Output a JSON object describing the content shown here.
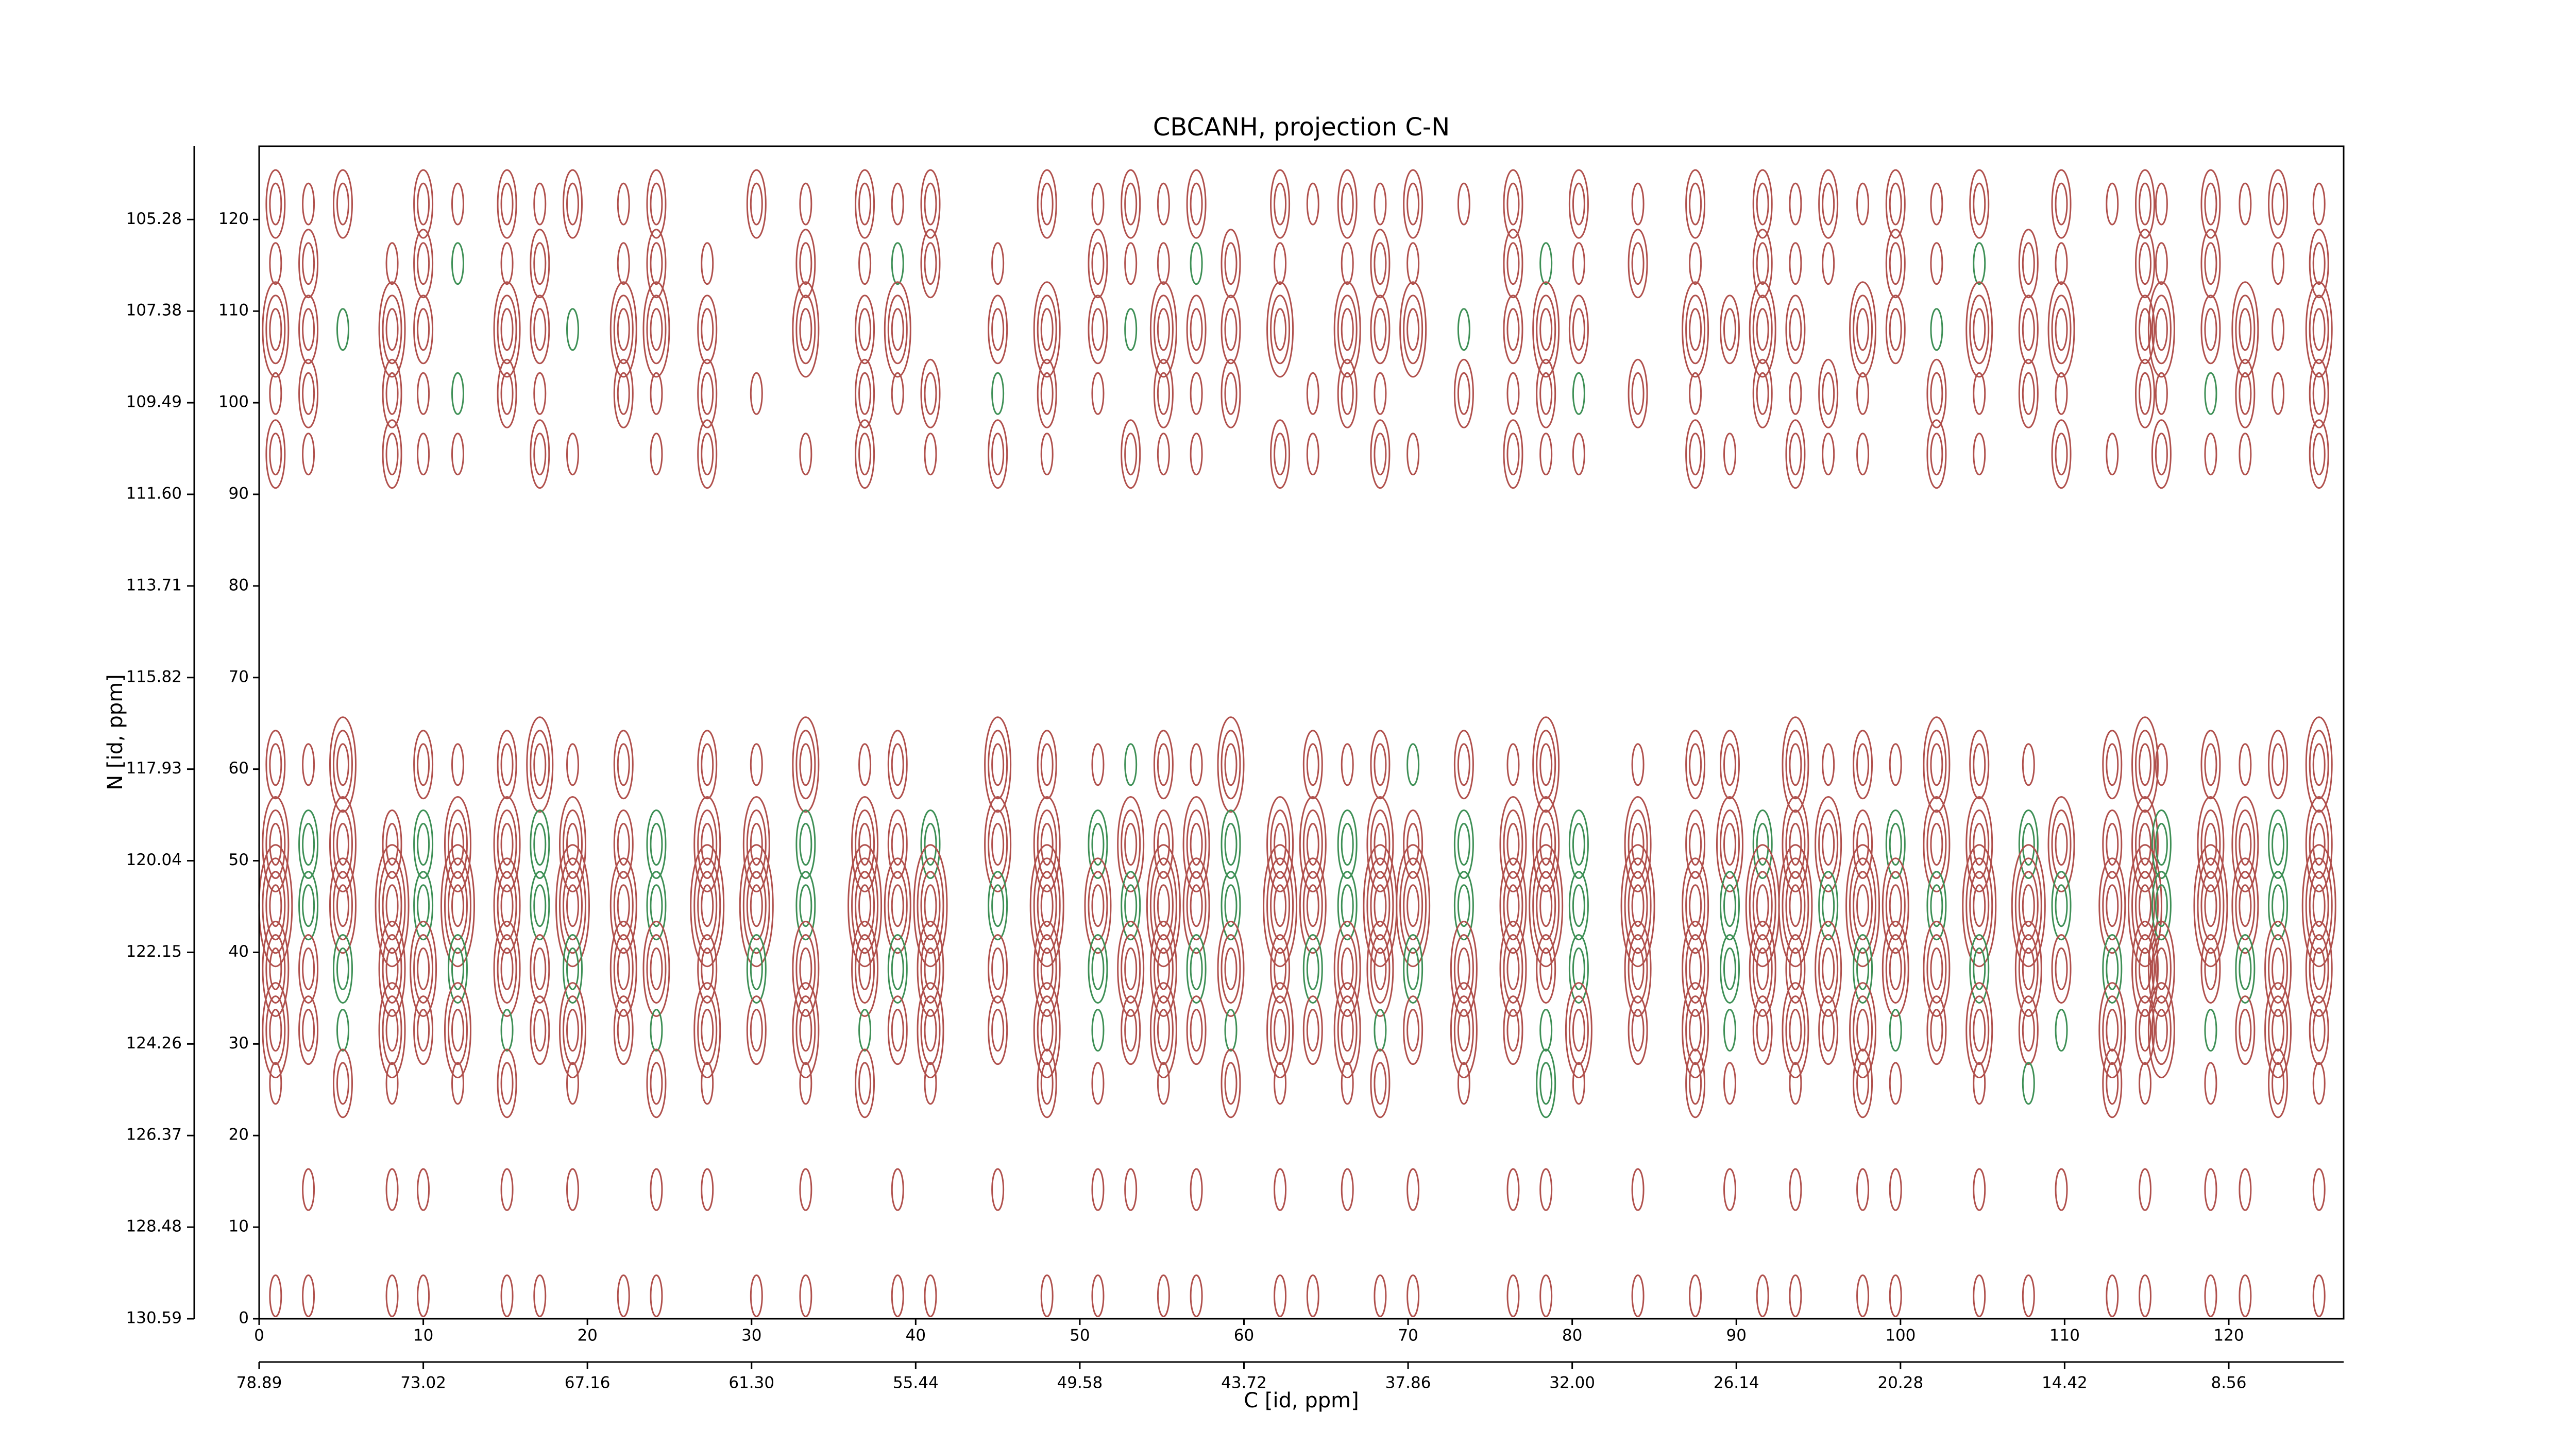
{
  "chart_data": {
    "type": "contour",
    "title": "CBCANH, projection C-N",
    "xlabel": "C [id, ppm]",
    "ylabel": "N [id, ppm]",
    "xlim": [
      0,
      127
    ],
    "ylim": [
      0,
      128
    ],
    "xticks": [
      0,
      10,
      20,
      30,
      40,
      50,
      60,
      70,
      80,
      90,
      100,
      110,
      120
    ],
    "yticks": [
      0,
      10,
      20,
      30,
      40,
      50,
      60,
      70,
      80,
      90,
      100,
      110,
      120
    ],
    "x2ticks": [
      {
        "value": 0,
        "label": "78.89"
      },
      {
        "value": 10,
        "label": "73.02"
      },
      {
        "value": 20,
        "label": "67.16"
      },
      {
        "value": 30,
        "label": "61.30"
      },
      {
        "value": 40,
        "label": "55.44"
      },
      {
        "value": 50,
        "label": "49.58"
      },
      {
        "value": 60,
        "label": "43.72"
      },
      {
        "value": 70,
        "label": "37.86"
      },
      {
        "value": 80,
        "label": "32.00"
      },
      {
        "value": 90,
        "label": "26.14"
      },
      {
        "value": 100,
        "label": "20.28"
      },
      {
        "value": 110,
        "label": "14.42"
      },
      {
        "value": 120,
        "label": "8.56"
      }
    ],
    "y2ticks": [
      {
        "value": 0,
        "label": "130.59"
      },
      {
        "value": 10,
        "label": "128.48"
      },
      {
        "value": 20,
        "label": "126.37"
      },
      {
        "value": 30,
        "label": "124.26"
      },
      {
        "value": 40,
        "label": "122.15"
      },
      {
        "value": 50,
        "label": "120.04"
      },
      {
        "value": 60,
        "label": "117.93"
      },
      {
        "value": 70,
        "label": "115.82"
      },
      {
        "value": 80,
        "label": "113.71"
      },
      {
        "value": 90,
        "label": "111.60"
      },
      {
        "value": 100,
        "label": "109.49"
      },
      {
        "value": 110,
        "label": "107.38"
      },
      {
        "value": 120,
        "label": "105.28"
      }
    ],
    "colors": {
      "positive": "#b0504c",
      "negative": "#3d8f55"
    },
    "columns": [
      1.0,
      3.0,
      5.1,
      8.1,
      10.0,
      12.1,
      15.1,
      17.1,
      19.1,
      22.2,
      24.2,
      27.3,
      30.3,
      33.3,
      36.9,
      38.9,
      40.9,
      45.0,
      48.0,
      51.1,
      53.1,
      55.1,
      57.1,
      59.2,
      62.2,
      64.2,
      66.3,
      68.3,
      70.3,
      73.4,
      76.4,
      78.4,
      80.4,
      84.0,
      87.5,
      89.6,
      91.6,
      93.6,
      95.6,
      97.7,
      99.7,
      102.2,
      104.8,
      107.8,
      109.8,
      112.9,
      114.9,
      115.9,
      118.9,
      121.0,
      123.0,
      125.5
    ],
    "rows": [
      121.7,
      115.2,
      108,
      101,
      94.4,
      60.5,
      51.8,
      45.1,
      38.2,
      31.5,
      25.7,
      14.1,
      2.5
    ],
    "levels": [
      [
        2,
        1,
        2,
        0,
        2,
        1,
        2,
        1,
        2,
        1,
        2,
        0,
        2,
        1,
        2,
        1,
        2,
        0,
        2,
        1,
        2,
        1,
        2,
        0,
        2,
        1,
        2,
        1,
        2,
        1,
        2,
        0,
        2,
        1,
        2,
        0,
        2,
        1,
        2,
        1,
        2,
        1,
        2,
        0,
        2,
        1,
        2,
        1,
        2,
        1,
        2,
        1
      ],
      [
        1,
        2,
        0,
        1,
        2,
        -1,
        1,
        2,
        0,
        1,
        2,
        1,
        0,
        2,
        1,
        -1,
        2,
        1,
        0,
        2,
        1,
        1,
        -1,
        2,
        1,
        0,
        1,
        2,
        1,
        0,
        2,
        -1,
        1,
        2,
        1,
        0,
        2,
        1,
        1,
        0,
        2,
        1,
        -1,
        2,
        1,
        0,
        2,
        1,
        2,
        0,
        1,
        2
      ],
      [
        3,
        2,
        -1,
        3,
        2,
        0,
        3,
        2,
        -1,
        3,
        3,
        2,
        0,
        3,
        2,
        3,
        0,
        2,
        3,
        2,
        -1,
        3,
        2,
        2,
        3,
        0,
        3,
        2,
        3,
        -1,
        2,
        3,
        2,
        0,
        3,
        2,
        3,
        2,
        0,
        3,
        2,
        -1,
        3,
        2,
        3,
        0,
        2,
        3,
        2,
        3,
        1,
        3
      ],
      [
        1,
        2,
        0,
        2,
        1,
        -1,
        2,
        1,
        0,
        2,
        1,
        2,
        1,
        0,
        2,
        1,
        2,
        -1,
        2,
        1,
        0,
        2,
        1,
        2,
        0,
        1,
        2,
        1,
        0,
        2,
        1,
        2,
        -1,
        2,
        1,
        0,
        2,
        1,
        2,
        1,
        0,
        2,
        1,
        2,
        1,
        0,
        2,
        1,
        -1,
        2,
        1,
        2
      ],
      [
        2,
        1,
        0,
        2,
        1,
        1,
        0,
        2,
        1,
        0,
        1,
        2,
        0,
        1,
        2,
        0,
        1,
        2,
        1,
        0,
        2,
        1,
        1,
        0,
        2,
        1,
        0,
        2,
        1,
        0,
        2,
        1,
        1,
        0,
        2,
        1,
        0,
        2,
        1,
        1,
        0,
        2,
        1,
        0,
        2,
        1,
        0,
        2,
        1,
        1,
        0,
        2
      ],
      [
        2,
        1,
        3,
        0,
        2,
        1,
        2,
        3,
        1,
        2,
        0,
        2,
        1,
        3,
        1,
        2,
        0,
        3,
        2,
        1,
        -1,
        2,
        1,
        3,
        0,
        2,
        1,
        2,
        -1,
        2,
        1,
        3,
        0,
        1,
        2,
        2,
        0,
        3,
        1,
        2,
        1,
        3,
        2,
        1,
        0,
        2,
        3,
        1,
        2,
        1,
        2,
        3
      ],
      [
        3,
        -2,
        3,
        2,
        -2,
        3,
        3,
        -2,
        3,
        2,
        -2,
        3,
        3,
        -2,
        3,
        2,
        -2,
        3,
        3,
        -2,
        3,
        2,
        3,
        -2,
        3,
        3,
        -2,
        3,
        2,
        -2,
        3,
        3,
        -2,
        3,
        2,
        3,
        -2,
        3,
        3,
        2,
        -2,
        3,
        3,
        -2,
        3,
        2,
        3,
        -2,
        3,
        3,
        -2,
        3
      ],
      [
        4,
        -2,
        3,
        4,
        -2,
        4,
        3,
        -2,
        4,
        3,
        -2,
        4,
        4,
        -2,
        4,
        3,
        4,
        -2,
        4,
        3,
        -2,
        4,
        3,
        -2,
        4,
        3,
        -2,
        4,
        4,
        -2,
        3,
        4,
        -2,
        4,
        3,
        -2,
        4,
        4,
        -2,
        4,
        3,
        -2,
        4,
        4,
        -2,
        3,
        4,
        -2,
        4,
        3,
        -2,
        4
      ],
      [
        3,
        2,
        -2,
        3,
        3,
        -2,
        3,
        2,
        -2,
        3,
        3,
        2,
        -2,
        3,
        3,
        -2,
        3,
        2,
        3,
        -2,
        3,
        3,
        -2,
        3,
        2,
        -2,
        3,
        3,
        -2,
        3,
        3,
        2,
        -2,
        3,
        3,
        -2,
        3,
        2,
        3,
        -2,
        3,
        3,
        -2,
        3,
        2,
        -2,
        3,
        3,
        2,
        -2,
        3,
        3
      ],
      [
        3,
        2,
        -1,
        3,
        2,
        3,
        -1,
        2,
        3,
        2,
        -1,
        3,
        2,
        3,
        -1,
        2,
        3,
        2,
        3,
        -1,
        2,
        3,
        2,
        -1,
        3,
        2,
        3,
        -1,
        2,
        3,
        2,
        -1,
        3,
        2,
        3,
        -1,
        2,
        3,
        2,
        3,
        -1,
        2,
        3,
        2,
        -1,
        3,
        2,
        3,
        -1,
        2,
        3,
        2
      ],
      [
        1,
        0,
        2,
        1,
        0,
        1,
        2,
        0,
        1,
        0,
        2,
        1,
        0,
        1,
        2,
        0,
        1,
        0,
        2,
        1,
        0,
        1,
        0,
        2,
        1,
        0,
        1,
        2,
        0,
        1,
        0,
        -2,
        1,
        0,
        2,
        1,
        0,
        1,
        0,
        2,
        1,
        0,
        1,
        -1,
        0,
        2,
        1,
        0,
        1,
        0,
        2,
        1
      ],
      [
        0,
        1,
        0,
        1,
        1,
        0,
        1,
        0,
        1,
        0,
        1,
        1,
        0,
        1,
        0,
        1,
        0,
        1,
        0,
        1,
        1,
        0,
        1,
        0,
        1,
        0,
        1,
        0,
        1,
        0,
        1,
        1,
        0,
        1,
        0,
        1,
        0,
        1,
        0,
        1,
        1,
        0,
        1,
        0,
        1,
        0,
        1,
        0,
        1,
        1,
        0,
        1
      ],
      [
        1,
        1,
        0,
        1,
        1,
        0,
        1,
        1,
        0,
        1,
        1,
        0,
        1,
        1,
        0,
        1,
        1,
        0,
        1,
        1,
        0,
        1,
        1,
        0,
        1,
        1,
        0,
        1,
        1,
        0,
        1,
        1,
        0,
        1,
        1,
        0,
        1,
        1,
        0,
        1,
        1,
        0,
        1,
        1,
        0,
        1,
        1,
        0,
        1,
        1,
        0,
        1
      ]
    ]
  }
}
